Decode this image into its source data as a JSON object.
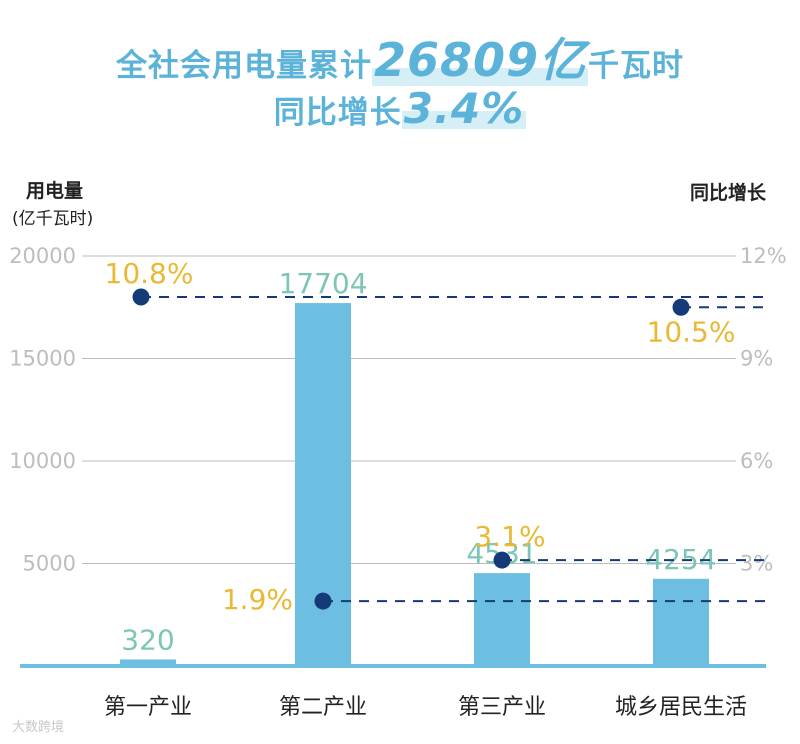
{
  "title": {
    "line1_prefix": "全社会用电量累计",
    "line1_value": "26809亿",
    "line1_suffix": "千瓦时",
    "line2_prefix": "同比增长",
    "line2_value": "3.4%"
  },
  "watermark": "大数跨境",
  "colors": {
    "title": "#5bb3d9",
    "bar": "#6cbfe0",
    "bar_label": "#7cc6b8",
    "growth_label": "#e9b934",
    "dot": "#153a78",
    "grid": "#bcbcbc",
    "baseline": "#6cbfe0"
  },
  "chart_data": {
    "type": "bar",
    "categories": [
      "第一产业",
      "第二产业",
      "第三产业",
      "城乡居民生活"
    ],
    "series": [
      {
        "name": "用电量",
        "axis": "left",
        "values": [
          320,
          17704,
          4531,
          4254
        ],
        "labels": [
          "320",
          "17704",
          "4531",
          "4254"
        ]
      },
      {
        "name": "同比增长",
        "axis": "right",
        "type": "scatter",
        "values": [
          10.8,
          1.9,
          3.1,
          10.5
        ],
        "labels": [
          "10.8%",
          "1.9%",
          "3.1%",
          "10.5%"
        ]
      }
    ],
    "ylabel": "用电量",
    "ylabel_unit": "(亿千瓦时)",
    "ylim": [
      0,
      20000
    ],
    "yticks": [
      5000,
      10000,
      15000,
      20000
    ],
    "y2label": "同比增长",
    "y2lim": [
      0,
      12
    ],
    "y2ticks": [
      3,
      6,
      9,
      12
    ],
    "y2tick_labels": [
      "3%",
      "6%",
      "9%",
      "12%"
    ],
    "grid": true
  }
}
